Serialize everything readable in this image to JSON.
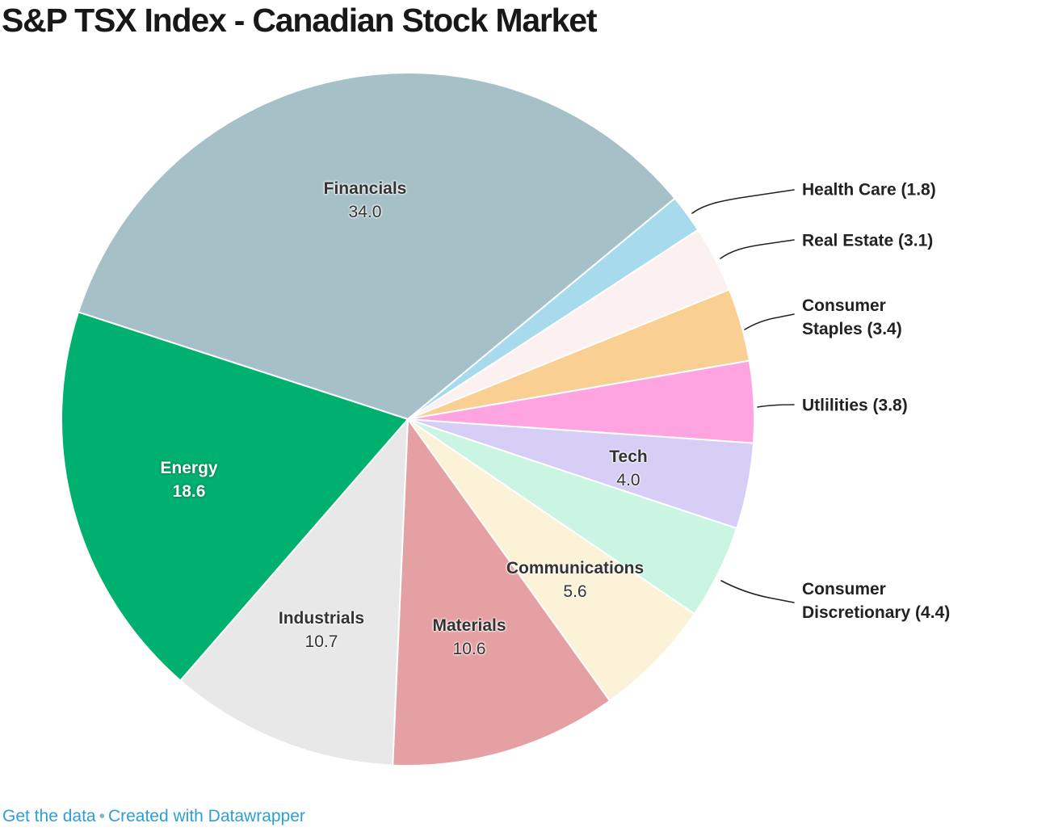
{
  "title": "S&P TSX Index - Canadian Stock Market",
  "footer": {
    "get_data": "Get the data",
    "separator": "•",
    "credit": "Created with Datawrapper",
    "link_color": "#2d9fd6"
  },
  "chart_data": {
    "type": "pie",
    "title": "S&P TSX Index - Canadian Stock Market",
    "unit": "percent of index weight",
    "total": 100.0,
    "start_angle_deg": -72,
    "direction": "clockwise",
    "legend_position": "none",
    "slices": [
      {
        "id": "financials",
        "label": "Financials",
        "value": 34.0,
        "value_label": "34.0",
        "color": "#a6c0c7",
        "label_placement": "inside"
      },
      {
        "id": "health-care",
        "label": "Health Care",
        "value": 1.8,
        "value_label": "1.8",
        "color": "#a8daee",
        "label_placement": "outside",
        "ext_label": "Health Care (1.8)"
      },
      {
        "id": "real-estate",
        "label": "Real Estate",
        "value": 3.1,
        "value_label": "3.1",
        "color": "#fcf0f1",
        "label_placement": "outside",
        "ext_label": "Real Estate (3.1)"
      },
      {
        "id": "consumer-staples",
        "label": "Consumer Staples",
        "value": 3.4,
        "value_label": "3.4",
        "color": "#f9cf92",
        "label_placement": "outside",
        "ext_label": "Consumer\nStaples (3.4)"
      },
      {
        "id": "utilities",
        "label": "Utlilities",
        "value": 3.8,
        "value_label": "3.8",
        "color": "#fda4e1",
        "label_placement": "outside",
        "ext_label": "Utlilities (3.8)"
      },
      {
        "id": "tech",
        "label": "Tech",
        "value": 4.0,
        "value_label": "4.0",
        "color": "#d6cef5",
        "label_placement": "inside"
      },
      {
        "id": "consumer-discretionary",
        "label": "Consumer Discretionary",
        "value": 4.4,
        "value_label": "4.4",
        "color": "#c9f5e2",
        "label_placement": "outside",
        "ext_label": "Consumer\nDiscretionary (4.4)"
      },
      {
        "id": "communications",
        "label": "Communications",
        "value": 5.6,
        "value_label": "5.6",
        "color": "#fcf2d8",
        "label_placement": "inside"
      },
      {
        "id": "materials",
        "label": "Materials",
        "value": 10.6,
        "value_label": "10.6",
        "color": "#e5a0a3",
        "label_placement": "inside"
      },
      {
        "id": "industrials",
        "label": "Industrials",
        "value": 10.7,
        "value_label": "10.7",
        "color": "#e8e8e8",
        "label_placement": "inside"
      },
      {
        "id": "energy",
        "label": "Energy",
        "value": 18.6,
        "value_label": "18.6",
        "color": "#00b06e",
        "label_placement": "inside",
        "label_color": "#ffffff"
      }
    ]
  }
}
